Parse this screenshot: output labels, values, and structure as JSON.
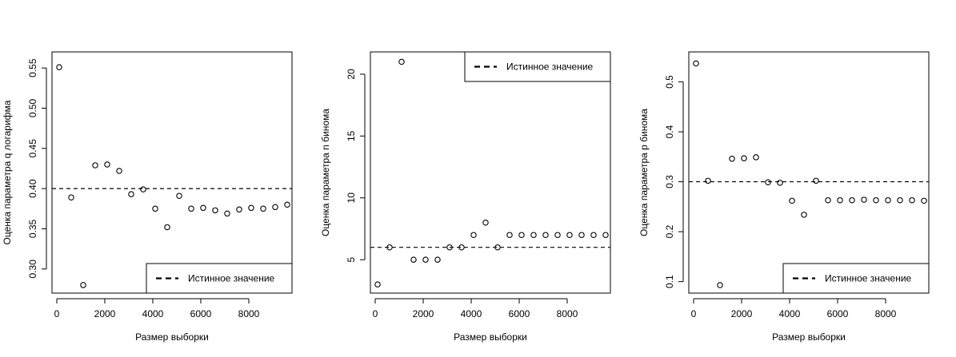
{
  "chart_data": [
    {
      "type": "scatter",
      "xlabel": "Размер выборки",
      "ylabel": "Оценка параметра q логарифма",
      "xlim": [
        -200,
        9800
      ],
      "ylim": [
        0.27,
        0.57
      ],
      "xticks": [
        0,
        2000,
        4000,
        6000,
        8000
      ],
      "xtick_labels": [
        "0",
        "2000",
        "4000",
        "6000",
        "8000"
      ],
      "yticks": [
        0.3,
        0.35,
        0.4,
        0.45,
        0.5,
        0.55
      ],
      "ytick_labels": [
        "0.30",
        "0.35",
        "0.40",
        "0.45",
        "0.50",
        "0.55"
      ],
      "true_value": 0.4,
      "legend": {
        "label": "Истинное значение",
        "position": "bottom-right"
      },
      "x": [
        100,
        600,
        1100,
        1600,
        2100,
        2600,
        3100,
        3600,
        4100,
        4600,
        5100,
        5600,
        6100,
        6600,
        7100,
        7600,
        8100,
        8600,
        9100,
        9600
      ],
      "y": [
        0.551,
        0.389,
        0.28,
        0.429,
        0.43,
        0.422,
        0.393,
        0.399,
        0.375,
        0.352,
        0.391,
        0.375,
        0.376,
        0.373,
        0.369,
        0.374,
        0.376,
        0.375,
        0.377,
        0.38
      ]
    },
    {
      "type": "scatter",
      "xlabel": "Размер выборки",
      "ylabel": "Оценка параметра n бинома",
      "xlim": [
        -200,
        9800
      ],
      "ylim": [
        2.3,
        21.8
      ],
      "xticks": [
        0,
        2000,
        4000,
        6000,
        8000
      ],
      "xtick_labels": [
        "0",
        "2000",
        "4000",
        "6000",
        "8000"
      ],
      "yticks": [
        5,
        10,
        15,
        20
      ],
      "ytick_labels": [
        "5",
        "10",
        "15",
        "20"
      ],
      "true_value": 6,
      "legend": {
        "label": "Истинное значение",
        "position": "top-right"
      },
      "x": [
        100,
        600,
        1100,
        1600,
        2100,
        2600,
        3100,
        3600,
        4100,
        4600,
        5100,
        5600,
        6100,
        6600,
        7100,
        7600,
        8100,
        8600,
        9100,
        9600
      ],
      "y": [
        3,
        6,
        21,
        5,
        5,
        5,
        6,
        6,
        7,
        8,
        6,
        7,
        7,
        7,
        7,
        7,
        7,
        7,
        7,
        7
      ]
    },
    {
      "type": "scatter",
      "xlabel": "Размер выборки",
      "ylabel": "Оценка параметра p бинома",
      "xlim": [
        -200,
        9800
      ],
      "ylim": [
        0.077,
        0.56
      ],
      "xticks": [
        0,
        2000,
        4000,
        6000,
        8000
      ],
      "xtick_labels": [
        "0",
        "2000",
        "4000",
        "6000",
        "8000"
      ],
      "yticks": [
        0.1,
        0.2,
        0.3,
        0.4,
        0.5
      ],
      "ytick_labels": [
        "0.1",
        "0.2",
        "0.3",
        "0.4",
        "0.5"
      ],
      "true_value": 0.3,
      "legend": {
        "label": "Истинное значение",
        "position": "bottom-right"
      },
      "x": [
        100,
        600,
        1100,
        1600,
        2100,
        2600,
        3100,
        3600,
        4100,
        4600,
        5100,
        5600,
        6100,
        6600,
        7100,
        7600,
        8100,
        8600,
        9100,
        9600
      ],
      "y": [
        0.537,
        0.302,
        0.093,
        0.346,
        0.347,
        0.349,
        0.299,
        0.298,
        0.262,
        0.234,
        0.302,
        0.263,
        0.263,
        0.263,
        0.264,
        0.263,
        0.263,
        0.263,
        0.263,
        0.262
      ]
    }
  ]
}
